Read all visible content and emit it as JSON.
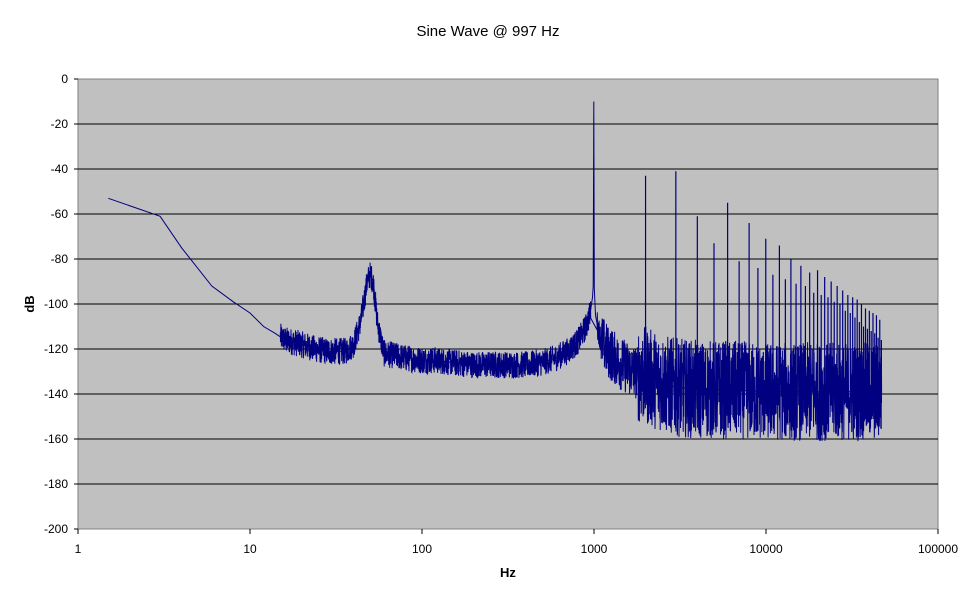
{
  "chart_data": {
    "type": "line",
    "title": "Sine Wave @ 997 Hz",
    "xlabel": "Hz",
    "ylabel": "dB",
    "x_scale": "log",
    "xlim": [
      1,
      100000
    ],
    "ylim": [
      -200,
      0
    ],
    "x_ticks": [
      1,
      10,
      100,
      1000,
      10000,
      100000
    ],
    "x_tick_labels": [
      "1",
      "10",
      "100",
      "1000",
      "10000",
      "100000"
    ],
    "y_ticks": [
      0,
      -20,
      -40,
      -60,
      -80,
      -100,
      -120,
      -140,
      -160,
      -180,
      -200
    ],
    "y_tick_labels": [
      "0",
      "-20",
      "-40",
      "-60",
      "-80",
      "-100",
      "-120",
      "-140",
      "-160",
      "-180",
      "-200"
    ],
    "grid": "horizontal",
    "plot_background": "#c0c0c0",
    "line_color": "#000080",
    "series": [
      {
        "values_x": [
          1.5,
          3,
          4,
          6,
          8,
          10,
          12,
          14,
          16,
          18,
          20,
          24,
          28,
          32,
          36,
          40,
          44,
          48,
          50,
          52,
          55,
          60,
          70,
          80,
          100,
          120,
          150,
          200,
          250,
          300,
          400,
          500,
          600,
          700,
          800,
          900,
          950,
          980,
          990,
          997,
          1004,
          1020,
          1050,
          1100,
          1200,
          1400,
          1700,
          2000,
          2500,
          3000,
          4000,
          6000,
          10000,
          20000,
          30000,
          47000
        ],
        "values_y": [
          -53,
          -61,
          -75,
          -92,
          -99,
          -104,
          -110,
          -113,
          -116,
          -117,
          -118,
          -120,
          -121,
          -121,
          -121,
          -118,
          -108,
          -90,
          -87,
          -90,
          -108,
          -122,
          -123,
          -124,
          -125,
          -125,
          -126,
          -127,
          -127,
          -127,
          -127,
          -126,
          -124,
          -121,
          -117,
          -110,
          -104,
          -97,
          -92,
          -10,
          -93,
          -105,
          -110,
          -116,
          -121,
          -126,
          -130,
          -132,
          -135,
          -137,
          -138,
          -138,
          -139,
          -139,
          -139,
          -139
        ]
      }
    ],
    "harmonics": {
      "x": [
        1994,
        2991,
        3988,
        4985,
        5982,
        6979,
        7976,
        8973,
        9970,
        10967,
        11964,
        12961,
        13958,
        14955,
        15952,
        16949,
        17946,
        18943,
        19940,
        20937,
        21934,
        22931,
        23928,
        24925,
        25922,
        26919,
        27916,
        28913,
        29910,
        30907,
        31904,
        32901,
        33898,
        34895,
        35892,
        36889,
        37886,
        38883,
        39880,
        40877,
        41874,
        42871,
        43868,
        44865,
        45862,
        46859
      ],
      "y": [
        -43,
        -41,
        -61,
        -73,
        -55,
        -81,
        -64,
        -84,
        -71,
        -87,
        -74,
        -89,
        -80,
        -91,
        -83,
        -92,
        -86,
        -95,
        -85,
        -96,
        -88,
        -97,
        -90,
        -99,
        -92,
        -100,
        -94,
        -103,
        -96,
        -104,
        -97,
        -106,
        -98,
        -108,
        -100,
        -110,
        -102,
        -111,
        -103,
        -112,
        -104,
        -113,
        -105,
        -115,
        -107,
        -116
      ]
    }
  }
}
